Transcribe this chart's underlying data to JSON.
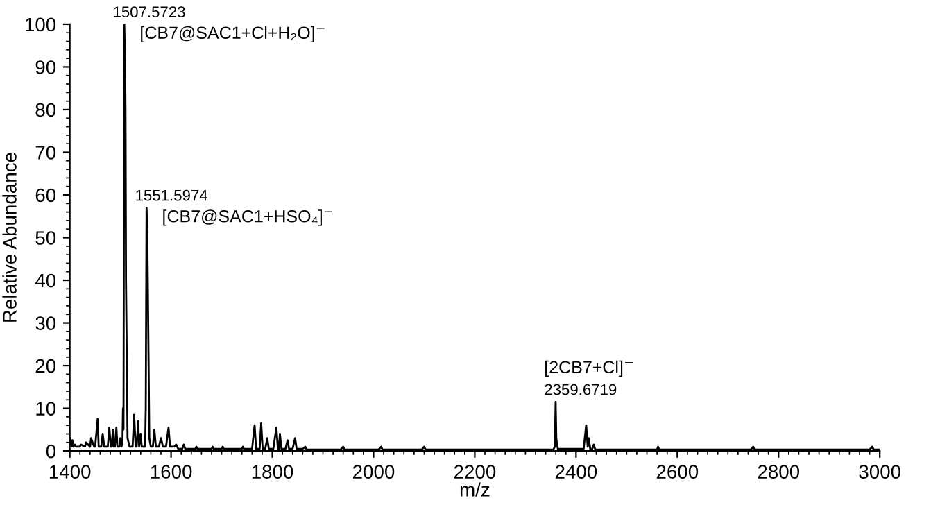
{
  "chart_data": {
    "type": "line",
    "xlabel": "m/z",
    "ylabel": "Relative Abundance",
    "x": [
      1400,
      1401,
      1403,
      1405,
      1407,
      1410,
      1412,
      1420,
      1422,
      1430,
      1432,
      1440,
      1442,
      1448,
      1450,
      1455,
      1457,
      1462,
      1465,
      1468,
      1472,
      1475,
      1478,
      1481,
      1483,
      1485,
      1487,
      1489,
      1492,
      1494,
      1498,
      1500,
      1502,
      1504,
      1505,
      1506,
      1507.5723,
      1509,
      1510,
      1511,
      1512,
      1514,
      1518,
      1521,
      1524,
      1527,
      1530,
      1532,
      1535,
      1537,
      1540,
      1542,
      1546,
      1548,
      1549,
      1550,
      1551.5974,
      1553,
      1554,
      1555,
      1557,
      1560,
      1564,
      1567,
      1570,
      1576,
      1580,
      1584,
      1590,
      1595,
      1598,
      1606,
      1610,
      1614,
      1622,
      1625,
      1628,
      1648,
      1650,
      1652,
      1680,
      1682,
      1684,
      1700,
      1702,
      1704,
      1740,
      1742,
      1744,
      1760,
      1765,
      1768,
      1772,
      1775,
      1778,
      1781,
      1786,
      1790,
      1793,
      1802,
      1808,
      1811,
      1813,
      1815,
      1818,
      1826,
      1830,
      1833,
      1840,
      1845,
      1848,
      1860,
      1865,
      1868,
      1935,
      1940,
      1943,
      2010,
      2015,
      2018,
      2095,
      2100,
      2103,
      2355,
      2358,
      2359.6719,
      2361,
      2362,
      2364,
      2412,
      2415,
      2420,
      2423,
      2425,
      2428,
      2432,
      2435,
      2438,
      2560,
      2562,
      2564,
      2745,
      2750,
      2753,
      2980,
      2985,
      2988,
      3000
    ],
    "series": [
      {
        "color": "#000000",
        "values": [
          2,
          3,
          1,
          2.5,
          1,
          1.5,
          1,
          1,
          1.5,
          1,
          2,
          1,
          3,
          1,
          1,
          7.5,
          1,
          1,
          4,
          1,
          1,
          1,
          5.5,
          1,
          1,
          5,
          1,
          1,
          5.5,
          1,
          1,
          3,
          1,
          2,
          10,
          5,
          100,
          92,
          80,
          40,
          28,
          3,
          1,
          1,
          1,
          8.5,
          1,
          1,
          7,
          1,
          4,
          1,
          1,
          1,
          3,
          10,
          57,
          51,
          40,
          28,
          3,
          1,
          1,
          5,
          1,
          1,
          3,
          1,
          1,
          5.5,
          1,
          1,
          1.5,
          0.5,
          0.5,
          1.5,
          0.5,
          0.5,
          1,
          0.5,
          0.5,
          1,
          0.5,
          0.5,
          1,
          0.5,
          0.5,
          1,
          0.5,
          0.5,
          6,
          0.5,
          0.5,
          0.5,
          6.5,
          0.5,
          0.5,
          3,
          0.5,
          0.5,
          5.5,
          0.5,
          0.5,
          4,
          0.5,
          0.5,
          2.5,
          0.5,
          0.5,
          3,
          0.5,
          0.5,
          1,
          0.3,
          0.3,
          1,
          0.3,
          0.3,
          1,
          0.3,
          0.3,
          1,
          0.3,
          0.3,
          1,
          11.5,
          3,
          2,
          0.5,
          0.5,
          0.5,
          6,
          1,
          3,
          0.5,
          0.5,
          1.5,
          0.3,
          0.3,
          1,
          0.3,
          0.3,
          1,
          0.3,
          0.3,
          1,
          0.3,
          0.3
        ]
      }
    ],
    "xlim": [
      1400,
      3000
    ],
    "ylim": [
      0,
      100
    ],
    "xticks": [
      1400,
      1600,
      1800,
      2000,
      2200,
      2400,
      2600,
      2800,
      3000
    ],
    "yticks": [
      0,
      10,
      20,
      30,
      40,
      50,
      60,
      70,
      80,
      90,
      100
    ],
    "annotations": [
      {
        "text": "1507.5723",
        "x": 1507.5723,
        "y": 100
      },
      "[CB7@SAC1+Cl+H₂O]$^{−}$",
      {
        "text": "1551.5974",
        "x": 1551.5974,
        "y": 57
      },
      "[CB7@SAC1+HSO₄]$^{−}$",
      {
        "text": "2359.6719",
        "x": 2359.6719,
        "y": 11.5
      },
      "[2CB7+Cl]$^{−}$"
    ],
    "grid": false,
    "legend": false
  }
}
